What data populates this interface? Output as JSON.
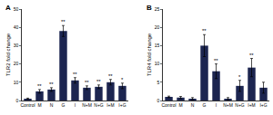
{
  "chart_data": [
    {
      "type": "bar",
      "title": "A",
      "y_label": "TLR2 fold change",
      "categories": [
        "Control",
        "M",
        "N",
        "G",
        "I",
        "N+M",
        "N+G",
        "I+M",
        "I+G"
      ],
      "values": [
        1,
        5,
        6,
        38,
        11,
        7,
        7.5,
        10,
        8
      ],
      "errors": [
        0.3,
        1,
        1,
        3,
        1.5,
        1,
        1,
        1.5,
        1.5
      ],
      "annotations": [
        null,
        "**",
        "**",
        "**",
        "**",
        "**",
        "**",
        "**",
        "*"
      ],
      "color": "#1c2550",
      "ylim": [
        0,
        50
      ],
      "yticks": [
        0,
        10,
        20,
        30,
        40,
        50
      ],
      "grid": false
    },
    {
      "type": "bar",
      "title": "B",
      "y_label": "TLR4 fold change",
      "categories": [
        "Control",
        "M",
        "N",
        "G",
        "I",
        "N+M",
        "N+G",
        "I+M",
        "I+G"
      ],
      "values": [
        1,
        0.8,
        0.5,
        15,
        8,
        0.5,
        4,
        9,
        3.5
      ],
      "errors": [
        0.2,
        0.3,
        0.3,
        3,
        2,
        0.3,
        1.5,
        2.5,
        1.5
      ],
      "annotations": [
        null,
        null,
        null,
        "**",
        "**",
        null,
        "*",
        "**",
        null
      ],
      "color": "#1c2550",
      "ylim": [
        0,
        25
      ],
      "yticks": [
        0,
        5,
        10,
        15,
        20,
        25
      ],
      "grid": false
    }
  ]
}
